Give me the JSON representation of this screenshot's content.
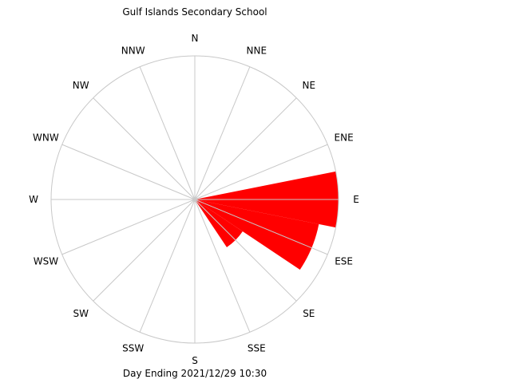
{
  "chart_data": {
    "type": "wind-rose",
    "title": "Gulf Islands Secondary School",
    "footer": "Day Ending 2021/12/29 10:30",
    "directions": [
      "N",
      "NNE",
      "NE",
      "ENE",
      "E",
      "ESE",
      "SE",
      "SSE",
      "S",
      "SSW",
      "SW",
      "WSW",
      "W",
      "WNW",
      "NW",
      "NNW"
    ],
    "values": [
      0,
      0,
      0,
      0.008,
      0.5,
      0.44,
      0.2,
      0,
      0,
      0,
      0,
      0,
      0,
      0,
      0,
      0
    ],
    "max_value": 0.5,
    "grid": true,
    "bar_color": "#ff0000",
    "grid_color": "#c8c8c8"
  }
}
